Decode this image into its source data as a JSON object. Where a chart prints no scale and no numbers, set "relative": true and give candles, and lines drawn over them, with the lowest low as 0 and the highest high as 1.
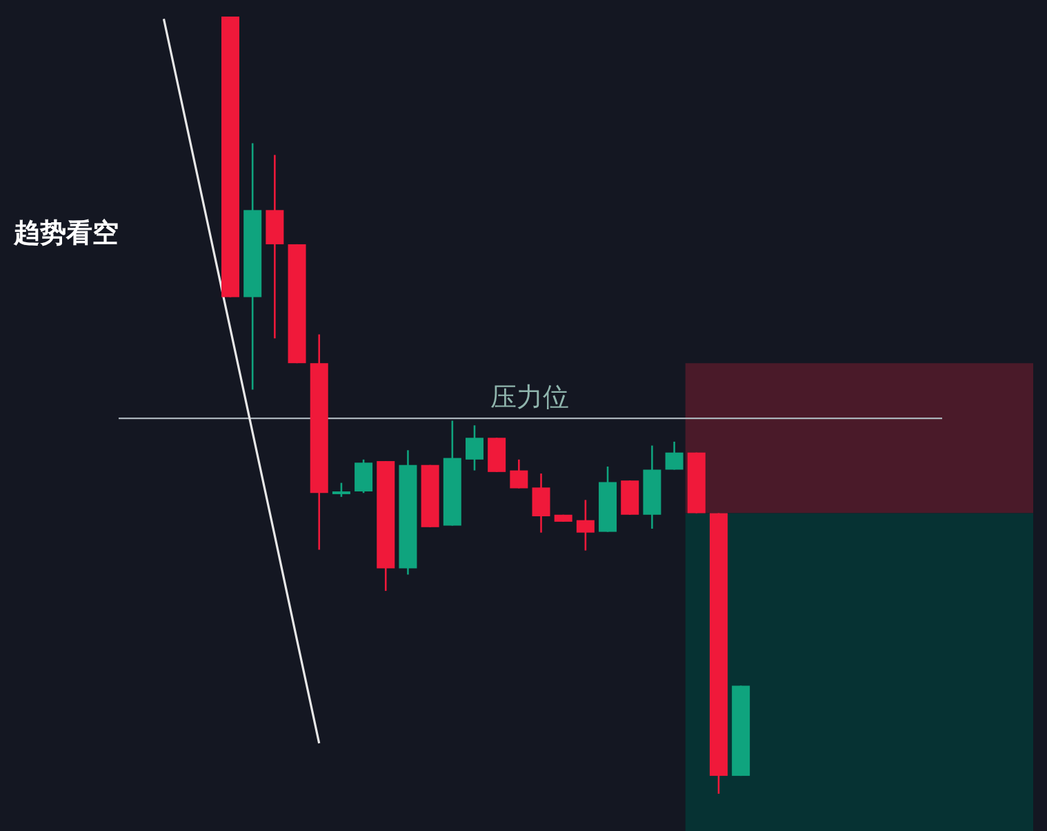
{
  "chart_data": {
    "type": "candlestick",
    "relative": true,
    "categories": [
      null,
      null,
      null,
      null,
      null,
      null,
      null,
      null,
      null,
      null,
      null,
      null,
      null,
      null,
      null,
      null,
      null,
      null,
      null,
      null,
      null,
      null,
      null,
      null,
      null,
      null,
      null
    ],
    "ohlc": [
      null,
      null,
      null,
      [
        1.0,
        1.0,
        0.639,
        0.639
      ],
      [
        0.639,
        0.837,
        0.52,
        0.751
      ],
      [
        0.751,
        0.822,
        0.586,
        0.707
      ],
      [
        0.707,
        0.707,
        0.554,
        0.554
      ],
      [
        0.554,
        0.591,
        0.314,
        0.387
      ],
      [
        0.389,
        0.4,
        0.382,
        0.389
      ],
      [
        0.389,
        0.43,
        0.387,
        0.426
      ],
      [
        0.428,
        0.428,
        0.261,
        0.29
      ],
      [
        0.29,
        0.442,
        0.282,
        0.423
      ],
      [
        0.423,
        0.423,
        0.343,
        0.343
      ],
      [
        0.345,
        0.48,
        0.345,
        0.432
      ],
      [
        0.43,
        0.474,
        0.416,
        0.458
      ],
      [
        0.458,
        0.458,
        0.414,
        0.414
      ],
      [
        0.416,
        0.43,
        0.393,
        0.393
      ],
      [
        0.394,
        0.412,
        0.336,
        0.357
      ],
      [
        0.359,
        0.359,
        0.35,
        0.35
      ],
      [
        0.352,
        0.378,
        0.313,
        0.336
      ],
      [
        0.337,
        0.421,
        0.337,
        0.401
      ],
      [
        0.403,
        0.403,
        0.359,
        0.359
      ],
      [
        0.359,
        0.448,
        0.341,
        0.417
      ],
      [
        0.417,
        0.453,
        0.417,
        0.439
      ],
      [
        0.439,
        0.439,
        0.361,
        0.361
      ],
      [
        0.361,
        0.361,
        0.0,
        0.023
      ],
      [
        0.023,
        0.139,
        0.023,
        0.139
      ]
    ],
    "colors": [
      null,
      null,
      null,
      "#f0193a",
      "#0fa47e",
      "#f0193a",
      "#f0193a",
      "#f0193a",
      "#0fa47e",
      "#0fa47e",
      "#f0193a",
      "#0fa47e",
      "#f0193a",
      "#0fa47e",
      "#0fa47e",
      "#f0193a",
      "#f0193a",
      "#f0193a",
      "#f0193a",
      "#f0193a",
      "#0fa47e",
      "#f0193a",
      "#0fa47e",
      "#0fa47e",
      "#f0193a",
      "#f0193a",
      "#0fa47e"
    ],
    "series": [
      {
        "type": "line",
        "color": "#e8e8e8",
        "values": [
          0.997,
          0.864,
          0.731,
          0.598,
          0.465,
          0.332,
          0.198,
          0.065,
          null,
          null,
          null,
          null,
          null,
          null,
          null,
          null,
          null,
          null,
          null,
          null,
          null,
          null,
          null,
          null,
          null,
          null,
          null
        ]
      }
    ],
    "ref_lines": [
      {
        "axis": "y",
        "value": 0.483,
        "label": "压力位",
        "color": "#aab4bb"
      }
    ],
    "bands": [
      {
        "axis": "y",
        "from": 0.361,
        "to": 0.554,
        "color": "#4a1a29"
      },
      {
        "axis": "y",
        "from": -0.048,
        "to": 0.361,
        "color": "#063233"
      }
    ],
    "annotations": [
      "趋势看空"
    ]
  }
}
